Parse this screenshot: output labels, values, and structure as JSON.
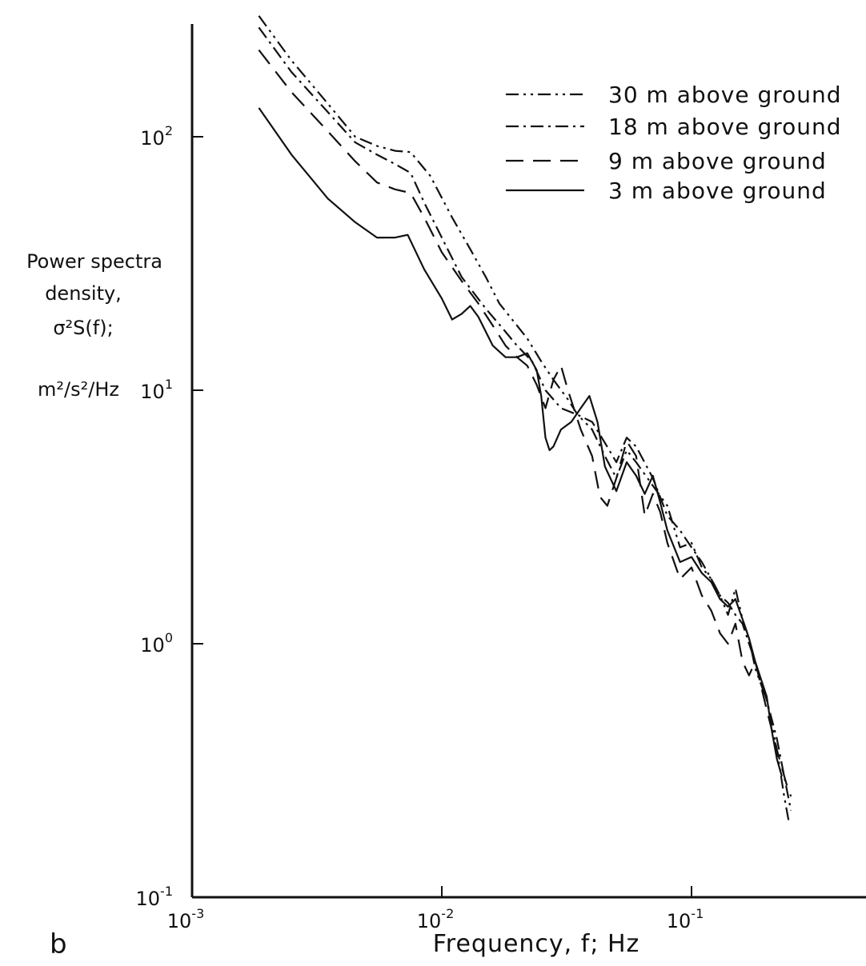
{
  "chart_data": {
    "type": "line",
    "x_scale": "log",
    "y_scale": "log",
    "xlim": [
      0.001,
      0.5
    ],
    "ylim": [
      0.1,
      300
    ],
    "grid": false,
    "legend_position": "top-right",
    "panel_label": "b",
    "xlabel": "Frequency, f; Hz",
    "ylabel_lines": [
      "Power spectra",
      "density,",
      "σ²S(f);",
      "m²/s²/Hz"
    ],
    "x_ticks": [
      {
        "value": 0.001,
        "base": "10",
        "exp": "-3"
      },
      {
        "value": 0.01,
        "base": "10",
        "exp": "-2"
      },
      {
        "value": 0.1,
        "base": "10",
        "exp": "-1"
      }
    ],
    "y_ticks": [
      {
        "value": 100,
        "base": "10",
        "exp": "2"
      },
      {
        "value": 10,
        "base": "10",
        "exp": "1"
      },
      {
        "value": 1,
        "base": "10",
        "exp": "0"
      },
      {
        "value": 0.1,
        "base": "10",
        "exp": "-1"
      }
    ],
    "series": [
      {
        "name": "30 m above ground",
        "dash": "16 6 3 6 3 6",
        "points": [
          [
            0.00185,
            300
          ],
          [
            0.0025,
            200
          ],
          [
            0.0035,
            135
          ],
          [
            0.0045,
            100
          ],
          [
            0.0055,
            92
          ],
          [
            0.0065,
            88
          ],
          [
            0.0075,
            87
          ],
          [
            0.009,
            70
          ],
          [
            0.011,
            48
          ],
          [
            0.013,
            36
          ],
          [
            0.015,
            28
          ],
          [
            0.017,
            22
          ],
          [
            0.02,
            18
          ],
          [
            0.022,
            16
          ],
          [
            0.025,
            13
          ],
          [
            0.028,
            11
          ],
          [
            0.032,
            9.2
          ],
          [
            0.035,
            8
          ],
          [
            0.04,
            7
          ],
          [
            0.045,
            5.5
          ],
          [
            0.05,
            4.5
          ],
          [
            0.055,
            5.8
          ],
          [
            0.06,
            5.2
          ],
          [
            0.07,
            4.2
          ],
          [
            0.08,
            3.5
          ],
          [
            0.09,
            2.4
          ],
          [
            0.1,
            2.5
          ],
          [
            0.11,
            2.0
          ],
          [
            0.12,
            1.8
          ],
          [
            0.13,
            1.55
          ],
          [
            0.14,
            1.3
          ],
          [
            0.15,
            1.65
          ],
          [
            0.16,
            1.25
          ],
          [
            0.17,
            1.05
          ],
          [
            0.18,
            0.8
          ],
          [
            0.2,
            0.6
          ],
          [
            0.22,
            0.38
          ],
          [
            0.235,
            0.25
          ],
          [
            0.245,
            0.2
          ]
        ]
      },
      {
        "name": "18 m above ground",
        "dash": "16 6 3 6",
        "points": [
          [
            0.00185,
            270
          ],
          [
            0.0025,
            180
          ],
          [
            0.0035,
            125
          ],
          [
            0.0045,
            95
          ],
          [
            0.0055,
            85
          ],
          [
            0.0065,
            78
          ],
          [
            0.0075,
            72
          ],
          [
            0.0085,
            55
          ],
          [
            0.01,
            40
          ],
          [
            0.012,
            28
          ],
          [
            0.015,
            21
          ],
          [
            0.018,
            17
          ],
          [
            0.02,
            15
          ],
          [
            0.023,
            13
          ],
          [
            0.026,
            10
          ],
          [
            0.03,
            8.5
          ],
          [
            0.035,
            8.0
          ],
          [
            0.04,
            7.5
          ],
          [
            0.045,
            6.2
          ],
          [
            0.05,
            5.2
          ],
          [
            0.055,
            6.5
          ],
          [
            0.06,
            6.0
          ],
          [
            0.07,
            4.5
          ],
          [
            0.08,
            3.2
          ],
          [
            0.09,
            2.8
          ],
          [
            0.1,
            2.4
          ],
          [
            0.11,
            2.1
          ],
          [
            0.12,
            1.8
          ],
          [
            0.13,
            1.55
          ],
          [
            0.14,
            1.45
          ],
          [
            0.15,
            1.3
          ],
          [
            0.16,
            1.2
          ],
          [
            0.17,
            1.0
          ],
          [
            0.18,
            0.85
          ],
          [
            0.2,
            0.6
          ],
          [
            0.22,
            0.42
          ],
          [
            0.235,
            0.3
          ],
          [
            0.25,
            0.22
          ]
        ]
      },
      {
        "name": "9 m above ground",
        "dash": "22 12",
        "points": [
          [
            0.00185,
            220
          ],
          [
            0.0025,
            150
          ],
          [
            0.0035,
            105
          ],
          [
            0.0045,
            80
          ],
          [
            0.0055,
            66
          ],
          [
            0.0065,
            62
          ],
          [
            0.0075,
            60
          ],
          [
            0.0085,
            48
          ],
          [
            0.01,
            35
          ],
          [
            0.012,
            27
          ],
          [
            0.014,
            22
          ],
          [
            0.016,
            18
          ],
          [
            0.018,
            15
          ],
          [
            0.02,
            13.5
          ],
          [
            0.022,
            12.5
          ],
          [
            0.024,
            10.5
          ],
          [
            0.026,
            8.5
          ],
          [
            0.028,
            11
          ],
          [
            0.03,
            12.5
          ],
          [
            0.032,
            10
          ],
          [
            0.036,
            7
          ],
          [
            0.04,
            5.5
          ],
          [
            0.043,
            3.8
          ],
          [
            0.046,
            3.5
          ],
          [
            0.05,
            4.5
          ],
          [
            0.055,
            6.3
          ],
          [
            0.06,
            5.5
          ],
          [
            0.065,
            3.2
          ],
          [
            0.07,
            3.9
          ],
          [
            0.075,
            3.3
          ],
          [
            0.08,
            2.5
          ],
          [
            0.09,
            1.8
          ],
          [
            0.1,
            2.0
          ],
          [
            0.11,
            1.55
          ],
          [
            0.12,
            1.35
          ],
          [
            0.13,
            1.1
          ],
          [
            0.14,
            1.0
          ],
          [
            0.15,
            1.2
          ],
          [
            0.16,
            0.85
          ],
          [
            0.17,
            0.75
          ],
          [
            0.18,
            0.85
          ],
          [
            0.2,
            0.55
          ],
          [
            0.22,
            0.38
          ],
          [
            0.24,
            0.28
          ],
          [
            0.25,
            0.25
          ]
        ]
      },
      {
        "name": "3 m above ground",
        "dash": "",
        "points": [
          [
            0.00185,
            130
          ],
          [
            0.0025,
            85
          ],
          [
            0.0035,
            57
          ],
          [
            0.0045,
            46
          ],
          [
            0.0055,
            40
          ],
          [
            0.0065,
            40
          ],
          [
            0.0073,
            41
          ],
          [
            0.0085,
            30
          ],
          [
            0.01,
            23
          ],
          [
            0.011,
            19
          ],
          [
            0.012,
            20
          ],
          [
            0.013,
            21.5
          ],
          [
            0.014,
            19.5
          ],
          [
            0.016,
            15
          ],
          [
            0.018,
            13.5
          ],
          [
            0.02,
            13.5
          ],
          [
            0.022,
            14
          ],
          [
            0.024,
            12
          ],
          [
            0.025,
            9.5
          ],
          [
            0.026,
            6.5
          ],
          [
            0.027,
            5.8
          ],
          [
            0.028,
            6.0
          ],
          [
            0.03,
            7.0
          ],
          [
            0.033,
            7.5
          ],
          [
            0.036,
            8.5
          ],
          [
            0.039,
            9.5
          ],
          [
            0.042,
            7.5
          ],
          [
            0.045,
            5.0
          ],
          [
            0.05,
            4.0
          ],
          [
            0.055,
            5.2
          ],
          [
            0.06,
            4.6
          ],
          [
            0.065,
            3.9
          ],
          [
            0.07,
            4.6
          ],
          [
            0.075,
            3.6
          ],
          [
            0.08,
            2.8
          ],
          [
            0.09,
            2.1
          ],
          [
            0.1,
            2.2
          ],
          [
            0.11,
            1.9
          ],
          [
            0.12,
            1.75
          ],
          [
            0.13,
            1.5
          ],
          [
            0.14,
            1.4
          ],
          [
            0.15,
            1.5
          ],
          [
            0.16,
            1.25
          ],
          [
            0.17,
            1.05
          ],
          [
            0.18,
            0.85
          ],
          [
            0.2,
            0.62
          ],
          [
            0.21,
            0.45
          ],
          [
            0.22,
            0.35
          ],
          [
            0.23,
            0.3
          ]
        ]
      }
    ]
  }
}
